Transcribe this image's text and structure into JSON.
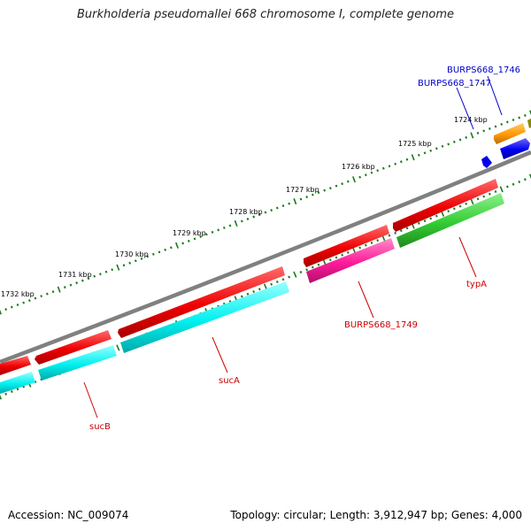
{
  "title": "Burkholderia pseudomallei 668 chromosome I, complete genome",
  "footer": {
    "accession": "Accession: NC_009074",
    "info": "Topology: circular; Length: 3,912,947 bp; Genes: 4,000"
  },
  "ruler": {
    "tick_labels": [
      "1724 kbp",
      "1725 kbp",
      "1726 kbp",
      "1727 kbp",
      "1728 kbp",
      "1729 kbp",
      "1730 kbp",
      "1731 kbp",
      "1732 kbp"
    ]
  },
  "colors": {
    "backbone": "#808080",
    "tick": "#1a7a1a",
    "red_gene": "#ee0000",
    "cyan_gene": "#00f0f0",
    "magenta_gene": "#ff1a9a",
    "green_gene": "#33cc33",
    "orange_gene": "#ff9900",
    "blue_gene": "#0000ee",
    "olive_gene": "#888800",
    "label_red": "#cc0000",
    "label_blue": "#0000cc"
  },
  "gene_labels": [
    {
      "text": "BURPS668_1746",
      "color": "blue"
    },
    {
      "text": "BURPS668_1747",
      "color": "blue"
    },
    {
      "text": "typA",
      "color": "red"
    },
    {
      "text": "BURPS668_1749",
      "color": "red"
    },
    {
      "text": "sucA",
      "color": "red"
    },
    {
      "text": "sucB",
      "color": "red"
    }
  ]
}
